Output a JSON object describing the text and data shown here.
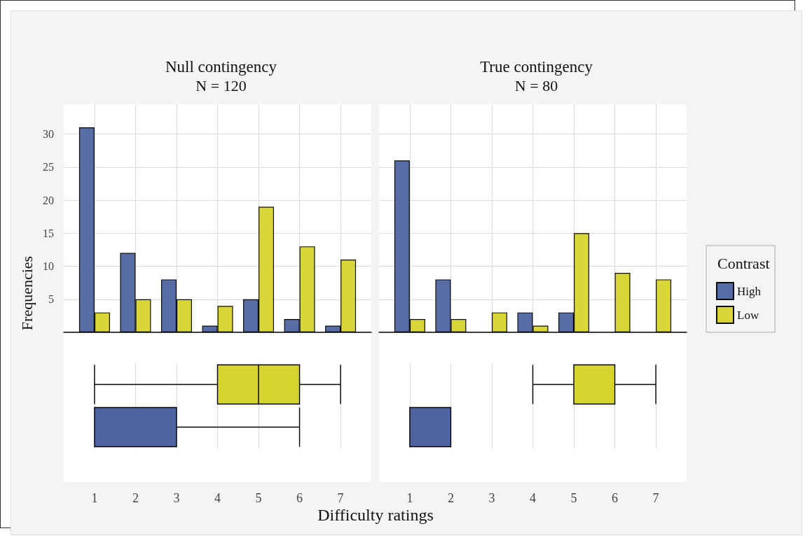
{
  "chart_data": [
    {
      "type": "bar",
      "title": "Null contingency",
      "subtitle": "N = 120",
      "ylabel": "Frequencies",
      "x": [
        1,
        2,
        3,
        4,
        5,
        6,
        7
      ],
      "xlim": [
        0.25,
        7.75
      ],
      "xticks": [
        1,
        2,
        3,
        4,
        5,
        6,
        7
      ],
      "ylim": [
        0,
        34.5
      ],
      "yticks": [
        5,
        10,
        15,
        20,
        25,
        30
      ],
      "grid": true,
      "tick_labels": "y",
      "series": [
        {
          "color": "#4f64a0",
          "values": [
            31,
            12,
            8,
            1,
            5,
            2,
            1
          ]
        },
        {
          "color": "#d6d42e",
          "values": [
            3,
            5,
            5,
            4,
            19,
            13,
            11
          ]
        }
      ]
    },
    {
      "type": "box",
      "orientation": "horizontal",
      "xlabel": "Difficulty ratings",
      "categories": [
        null,
        null
      ],
      "xlim": [
        0.25,
        7.75
      ],
      "xticks": [
        1,
        2,
        3,
        4,
        5,
        6,
        7
      ],
      "grid": "x",
      "tick_labels": "x",
      "series": [
        {
          "colors": [
            "#d6d42e",
            "#4f64a0"
          ],
          "boxes": [
            {
              "low": 1,
              "q1": 4,
              "median": 5,
              "q3": 6,
              "high": 7
            },
            {
              "low": 1,
              "q1": 1,
              "median": 1,
              "q3": 3,
              "high": 6
            }
          ]
        }
      ]
    },
    {
      "type": "bar",
      "title": "True contingency",
      "subtitle": "N = 80",
      "legend_title": "Contrast",
      "x": [
        1,
        2,
        3,
        4,
        5,
        6,
        7
      ],
      "xlim": [
        0.25,
        7.75
      ],
      "xticks": [
        1,
        2,
        3,
        4,
        5,
        6,
        7
      ],
      "ylim": [
        0,
        34.5
      ],
      "yticks": [
        5,
        10,
        15,
        20,
        25,
        30
      ],
      "grid": true,
      "legend": "right",
      "tick_labels": false,
      "series": [
        {
          "name": "High",
          "color": "#4f64a0",
          "values": [
            26,
            8,
            null,
            3,
            3,
            null,
            null
          ]
        },
        {
          "name": "Low",
          "color": "#d6d42e",
          "values": [
            2,
            2,
            3,
            1,
            15,
            9,
            8
          ]
        }
      ]
    },
    {
      "type": "box",
      "orientation": "horizontal",
      "categories": [
        null,
        null
      ],
      "xlim": [
        0.25,
        7.75
      ],
      "xticks": [
        1,
        2,
        3,
        4,
        5,
        6,
        7
      ],
      "grid": "x",
      "tick_labels": "x",
      "series": [
        {
          "colors": [
            "#d6d42e",
            "#4f64a0"
          ],
          "boxes": [
            {
              "low": 4,
              "q1": 5,
              "median": 5,
              "q3": 6,
              "high": 7
            },
            {
              "low": 1,
              "q1": 1,
              "median": 1,
              "q3": 2,
              "high": 2
            }
          ]
        }
      ]
    }
  ]
}
